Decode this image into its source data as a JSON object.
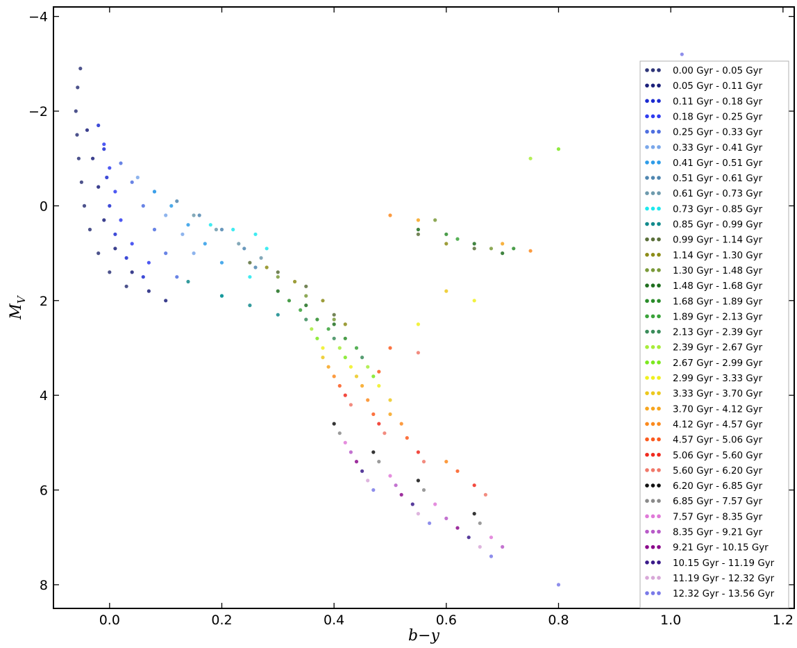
{
  "chart_data": {
    "type": "scatter",
    "xlabel": "b−y",
    "ylabel": "M_V",
    "xlim": [
      -0.1,
      1.22
    ],
    "ylim": [
      8.5,
      -4.2
    ],
    "y_inverted": true,
    "xticks": [
      0.0,
      0.2,
      0.4,
      0.6,
      0.8,
      1.0,
      1.2
    ],
    "xtick_labels": [
      "0.0",
      "0.2",
      "0.4",
      "0.6",
      "0.8",
      "1.0",
      "1.2"
    ],
    "yticks": [
      -4,
      -2,
      0,
      2,
      4,
      6,
      8
    ],
    "ytick_labels": [
      "−4",
      "−2",
      "0",
      "2",
      "4",
      "6",
      "8"
    ],
    "legend_position": "right",
    "grid": false,
    "series": [
      {
        "name": "0.00 Gyr - 0.05 Gyr",
        "color": "#2e3578",
        "points": [
          [
            -0.052,
            -2.9
          ],
          [
            -0.057,
            -2.5
          ],
          [
            -0.06,
            -2.0
          ],
          [
            -0.058,
            -1.5
          ],
          [
            -0.055,
            -1.0
          ],
          [
            -0.05,
            -0.5
          ],
          [
            -0.045,
            0.0
          ],
          [
            -0.035,
            0.5
          ],
          [
            -0.02,
            1.0
          ],
          [
            0.0,
            1.4
          ],
          [
            0.03,
            1.7
          ]
        ]
      },
      {
        "name": "0.05 Gyr - 0.11 Gyr",
        "color": "#1a1f7a",
        "points": [
          [
            -0.04,
            -1.6
          ],
          [
            -0.03,
            -1.0
          ],
          [
            -0.02,
            -0.4
          ],
          [
            -0.01,
            0.3
          ],
          [
            0.01,
            0.9
          ],
          [
            0.04,
            1.4
          ],
          [
            0.07,
            1.8
          ],
          [
            0.1,
            2.0
          ]
        ]
      },
      {
        "name": "0.11 Gyr - 0.18 Gyr",
        "color": "#1c2bd0",
        "points": [
          [
            -0.02,
            -1.7
          ],
          [
            -0.01,
            -1.2
          ],
          [
            -0.005,
            -0.6
          ],
          [
            0.0,
            0.0
          ],
          [
            0.01,
            0.6
          ],
          [
            0.03,
            1.1
          ],
          [
            0.06,
            1.5
          ]
        ]
      },
      {
        "name": "0.18 Gyr - 0.25 Gyr",
        "color": "#2f3cf0",
        "points": [
          [
            -0.01,
            -1.3
          ],
          [
            0.0,
            -0.8
          ],
          [
            0.01,
            -0.3
          ],
          [
            0.02,
            0.3
          ],
          [
            0.04,
            0.8
          ],
          [
            0.07,
            1.2
          ]
        ]
      },
      {
        "name": "0.25 Gyr - 0.33 Gyr",
        "color": "#4f6fe0",
        "points": [
          [
            0.02,
            -0.9
          ],
          [
            0.04,
            -0.5
          ],
          [
            0.06,
            0.0
          ],
          [
            0.08,
            0.5
          ],
          [
            0.1,
            1.0
          ],
          [
            0.12,
            1.5
          ]
        ]
      },
      {
        "name": "0.33 Gyr - 0.41 Gyr",
        "color": "#7aa7ea",
        "points": [
          [
            0.05,
            -0.6
          ],
          [
            0.08,
            -0.3
          ],
          [
            0.1,
            0.2
          ],
          [
            0.13,
            0.6
          ],
          [
            0.15,
            1.0
          ]
        ]
      },
      {
        "name": "0.41 Gyr - 0.51 Gyr",
        "color": "#2e9ce8",
        "points": [
          [
            0.08,
            -0.3
          ],
          [
            0.11,
            0.0
          ],
          [
            0.14,
            0.4
          ],
          [
            0.17,
            0.8
          ],
          [
            0.2,
            1.2
          ]
        ]
      },
      {
        "name": "0.51 Gyr - 0.61 Gyr",
        "color": "#4f86b0",
        "points": [
          [
            0.12,
            -0.1
          ],
          [
            0.16,
            0.2
          ],
          [
            0.2,
            0.5
          ],
          [
            0.24,
            0.9
          ],
          [
            0.26,
            1.3
          ]
        ]
      },
      {
        "name": "0.61 Gyr - 0.73 Gyr",
        "color": "#6e9aad",
        "points": [
          [
            0.15,
            0.2
          ],
          [
            0.19,
            0.5
          ],
          [
            0.23,
            0.8
          ],
          [
            0.27,
            1.1
          ]
        ]
      },
      {
        "name": "0.73 Gyr - 0.85 Gyr",
        "color": "#1ee8ee",
        "points": [
          [
            0.18,
            0.4
          ],
          [
            0.22,
            0.5
          ],
          [
            0.26,
            0.6
          ],
          [
            0.28,
            0.9
          ],
          [
            0.25,
            1.5
          ],
          [
            0.2,
            1.9
          ]
        ]
      },
      {
        "name": "0.85 Gyr - 0.99 Gyr",
        "color": "#128a8c",
        "points": [
          [
            0.14,
            1.6
          ],
          [
            0.2,
            1.9
          ],
          [
            0.25,
            2.1
          ],
          [
            0.3,
            2.3
          ]
        ]
      },
      {
        "name": "0.99 Gyr - 1.14 Gyr",
        "color": "#5a6f3a",
        "points": [
          [
            0.25,
            1.2
          ],
          [
            0.3,
            1.4
          ],
          [
            0.35,
            1.7
          ],
          [
            0.4,
            2.3
          ],
          [
            0.55,
            0.6
          ],
          [
            0.65,
            0.9
          ]
        ]
      },
      {
        "name": "1.14 Gyr - 1.30 Gyr",
        "color": "#8c8c18",
        "points": [
          [
            0.28,
            1.3
          ],
          [
            0.33,
            1.6
          ],
          [
            0.38,
            2.0
          ],
          [
            0.42,
            2.5
          ],
          [
            0.6,
            0.8
          ]
        ]
      },
      {
        "name": "1.30 Gyr - 1.48 Gyr",
        "color": "#7a9a3a",
        "points": [
          [
            0.3,
            1.5
          ],
          [
            0.35,
            1.9
          ],
          [
            0.4,
            2.4
          ],
          [
            0.58,
            0.3
          ],
          [
            0.68,
            0.9
          ]
        ]
      },
      {
        "name": "1.48 Gyr - 1.68 Gyr",
        "color": "#1e6e1e",
        "points": [
          [
            0.3,
            1.8
          ],
          [
            0.35,
            2.1
          ],
          [
            0.4,
            2.5
          ],
          [
            0.55,
            0.5
          ],
          [
            0.65,
            0.8
          ],
          [
            0.7,
            1.0
          ]
        ]
      },
      {
        "name": "1.68 Gyr - 1.89 Gyr",
        "color": "#2a8c2a",
        "points": [
          [
            0.32,
            2.0
          ],
          [
            0.37,
            2.4
          ],
          [
            0.42,
            2.8
          ],
          [
            0.6,
            0.6
          ],
          [
            0.72,
            0.9
          ]
        ]
      },
      {
        "name": "1.89 Gyr - 2.13 Gyr",
        "color": "#3aa33a",
        "points": [
          [
            0.34,
            2.2
          ],
          [
            0.39,
            2.6
          ],
          [
            0.44,
            3.0
          ],
          [
            0.62,
            0.7
          ]
        ]
      },
      {
        "name": "2.13 Gyr - 2.39 Gyr",
        "color": "#3a8c5a",
        "points": [
          [
            0.35,
            2.4
          ],
          [
            0.4,
            2.8
          ],
          [
            0.45,
            3.2
          ]
        ]
      },
      {
        "name": "2.39 Gyr - 2.67 Gyr",
        "color": "#a8ec3a",
        "points": [
          [
            0.36,
            2.6
          ],
          [
            0.41,
            3.0
          ],
          [
            0.46,
            3.4
          ],
          [
            0.75,
            -1.0
          ]
        ]
      },
      {
        "name": "2.67 Gyr - 2.99 Gyr",
        "color": "#7ce81e",
        "points": [
          [
            0.37,
            2.8
          ],
          [
            0.42,
            3.2
          ],
          [
            0.47,
            3.6
          ],
          [
            0.8,
            -1.2
          ]
        ]
      },
      {
        "name": "2.99 Gyr - 3.33 Gyr",
        "color": "#f0f01e",
        "points": [
          [
            0.38,
            3.0
          ],
          [
            0.43,
            3.4
          ],
          [
            0.48,
            3.8
          ],
          [
            0.55,
            2.5
          ],
          [
            0.65,
            2.0
          ]
        ]
      },
      {
        "name": "3.33 Gyr - 3.70 Gyr",
        "color": "#ecc81e",
        "points": [
          [
            0.38,
            3.2
          ],
          [
            0.44,
            3.6
          ],
          [
            0.5,
            4.1
          ],
          [
            0.6,
            1.8
          ]
        ]
      },
      {
        "name": "3.70 Gyr - 4.12 Gyr",
        "color": "#f7a51e",
        "points": [
          [
            0.39,
            3.4
          ],
          [
            0.45,
            3.8
          ],
          [
            0.5,
            4.4
          ],
          [
            0.55,
            0.3
          ],
          [
            0.7,
            0.8
          ]
        ]
      },
      {
        "name": "4.12 Gyr - 4.57 Gyr",
        "color": "#fb8a1e",
        "points": [
          [
            0.4,
            3.6
          ],
          [
            0.46,
            4.1
          ],
          [
            0.52,
            4.6
          ],
          [
            0.6,
            5.4
          ],
          [
            0.5,
            0.2
          ],
          [
            0.75,
            0.95
          ]
        ]
      },
      {
        "name": "4.57 Gyr - 5.06 Gyr",
        "color": "#fb5a1e",
        "points": [
          [
            0.41,
            3.8
          ],
          [
            0.47,
            4.4
          ],
          [
            0.53,
            4.9
          ],
          [
            0.62,
            5.6
          ],
          [
            0.48,
            3.5
          ],
          [
            0.5,
            3.0
          ]
        ]
      },
      {
        "name": "5.06 Gyr - 5.60 Gyr",
        "color": "#f02a1e",
        "points": [
          [
            0.42,
            4.0
          ],
          [
            0.48,
            4.6
          ],
          [
            0.55,
            5.2
          ],
          [
            0.65,
            5.9
          ]
        ]
      },
      {
        "name": "5.60 Gyr - 6.20 Gyr",
        "color": "#f0786a",
        "points": [
          [
            0.43,
            4.2
          ],
          [
            0.49,
            4.8
          ],
          [
            0.56,
            5.4
          ],
          [
            0.67,
            6.1
          ],
          [
            0.55,
            3.1
          ]
        ]
      },
      {
        "name": "6.20 Gyr - 6.85 Gyr",
        "color": "#111111",
        "points": [
          [
            0.4,
            4.6
          ],
          [
            0.47,
            5.2
          ],
          [
            0.55,
            5.8
          ],
          [
            0.65,
            6.5
          ]
        ]
      },
      {
        "name": "6.85 Gyr - 7.57 Gyr",
        "color": "#8a8a8a",
        "points": [
          [
            0.41,
            4.8
          ],
          [
            0.48,
            5.4
          ],
          [
            0.56,
            6.0
          ],
          [
            0.66,
            6.7
          ]
        ]
      },
      {
        "name": "7.57 Gyr - 8.35 Gyr",
        "color": "#e07ad8",
        "points": [
          [
            0.42,
            5.0
          ],
          [
            0.5,
            5.7
          ],
          [
            0.58,
            6.3
          ],
          [
            0.68,
            7.0
          ]
        ]
      },
      {
        "name": "8.35 Gyr - 9.21 Gyr",
        "color": "#b85ac8",
        "points": [
          [
            0.43,
            5.2
          ],
          [
            0.51,
            5.9
          ],
          [
            0.6,
            6.6
          ],
          [
            0.7,
            7.2
          ]
        ]
      },
      {
        "name": "9.21 Gyr - 10.15 Gyr",
        "color": "#8c0a8c",
        "points": [
          [
            0.44,
            5.4
          ],
          [
            0.52,
            6.1
          ],
          [
            0.62,
            6.8
          ]
        ]
      },
      {
        "name": "10.15 Gyr - 11.19 Gyr",
        "color": "#3a1a8a",
        "points": [
          [
            0.45,
            5.6
          ],
          [
            0.54,
            6.3
          ],
          [
            0.64,
            7.0
          ]
        ]
      },
      {
        "name": "11.19 Gyr - 12.32 Gyr",
        "color": "#d8a8d8",
        "points": [
          [
            0.46,
            5.8
          ],
          [
            0.55,
            6.5
          ],
          [
            0.66,
            7.2
          ]
        ]
      },
      {
        "name": "12.32 Gyr - 13.56 Gyr",
        "color": "#7a7ae8",
        "points": [
          [
            0.47,
            6.0
          ],
          [
            0.57,
            6.7
          ],
          [
            0.68,
            7.4
          ],
          [
            0.8,
            8.0
          ],
          [
            1.02,
            -3.2
          ]
        ]
      }
    ]
  }
}
